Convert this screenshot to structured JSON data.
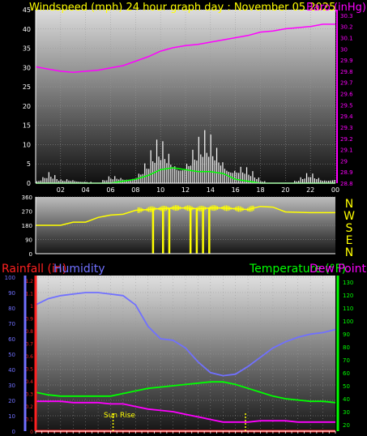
{
  "colors": {
    "wind_title": "#ffff00",
    "baro_title": "#ff00ff",
    "baro_line": "#ff00ff",
    "wind_gust": "#ffffff",
    "wind_avg": "#00ff00",
    "wind_dir": "#ffff00",
    "rain": "#ff2020",
    "humidity": "#7070ff",
    "temperature": "#00ff00",
    "dewpoint": "#ff00ff",
    "sunrise": "#ffff00"
  },
  "chart_data": [
    {
      "type": "line",
      "id": "wind_baro",
      "title": "Windspeed (mph)   24 hour graph day : November 05 2025",
      "baro_label": "Baro (inHg)",
      "xlim": [
        0,
        24
      ],
      "x_ticks": [
        "02",
        "04",
        "06",
        "08",
        "10",
        "12",
        "14",
        "16",
        "18",
        "20",
        "22",
        "00"
      ],
      "x_tick_hours": [
        2,
        4,
        6,
        8,
        10,
        12,
        14,
        16,
        18,
        20,
        22,
        24
      ],
      "ylim": [
        0,
        45
      ],
      "y_ticks": [
        0,
        5,
        10,
        15,
        20,
        25,
        30,
        35,
        40,
        45
      ],
      "y2lim": [
        28.8,
        30.35
      ],
      "y2_ticks": [
        "28.8",
        "28.9",
        "29",
        "29.1",
        "29.2",
        "29.3",
        "29.4",
        "29.5",
        "29.6",
        "29.7",
        "29.8",
        "29.9",
        "30",
        "30.1",
        "30.2",
        "30.3"
      ],
      "series": [
        {
          "key": "baro",
          "axis": "right",
          "x": [
            0,
            1,
            2,
            3,
            4,
            5,
            6,
            7,
            8,
            9,
            10,
            11,
            12,
            13,
            14,
            15,
            16,
            17,
            18,
            19,
            20,
            21,
            22,
            23,
            24
          ],
          "y": [
            29.84,
            29.82,
            29.8,
            29.79,
            29.8,
            29.81,
            29.83,
            29.85,
            29.89,
            29.93,
            29.98,
            30.01,
            30.03,
            30.04,
            30.06,
            30.08,
            30.1,
            30.12,
            30.15,
            30.16,
            30.18,
            30.19,
            30.2,
            30.22,
            30.22
          ]
        },
        {
          "key": "gust",
          "axis": "left",
          "x": [
            0,
            1,
            2,
            3,
            4,
            5,
            6,
            7,
            8,
            9,
            10,
            11,
            12,
            13,
            14,
            15,
            16,
            17,
            18,
            19,
            20,
            21,
            22,
            23,
            24
          ],
          "y": [
            1,
            3,
            1,
            2,
            1,
            0,
            2,
            3,
            4,
            7,
            12,
            14,
            12,
            12,
            13,
            14,
            9,
            4,
            1,
            0,
            0,
            1,
            3,
            2,
            3
          ]
        },
        {
          "key": "avg",
          "axis": "left",
          "x": [
            0,
            2,
            4,
            6,
            7,
            8,
            9,
            10,
            11,
            12,
            13,
            14,
            15,
            16,
            17,
            18,
            20,
            24
          ],
          "y": [
            0,
            0,
            0,
            0,
            0.5,
            1,
            2,
            3.5,
            4,
            3.5,
            3,
            3,
            2.5,
            1,
            0.5,
            0,
            0,
            0
          ]
        }
      ]
    },
    {
      "type": "line",
      "id": "wind_direction",
      "ylim": [
        0,
        360
      ],
      "y_ticks": [
        0,
        90,
        180,
        270,
        360
      ],
      "compass": [
        "N",
        "W",
        "S",
        "E",
        "N"
      ],
      "series": [
        {
          "key": "dir",
          "x": [
            0,
            2,
            3,
            4,
            5,
            6,
            7,
            8,
            9,
            9.5,
            10,
            11,
            12,
            13,
            14,
            15,
            16,
            17,
            18,
            19,
            20,
            22,
            24
          ],
          "y": [
            180,
            180,
            200,
            200,
            230,
            245,
            250,
            275,
            280,
            285,
            285,
            290,
            290,
            285,
            290,
            290,
            285,
            280,
            300,
            295,
            265,
            260,
            260
          ]
        }
      ]
    },
    {
      "type": "line",
      "id": "rain_humidity_temp",
      "labels": {
        "rainfall": "Rainfall (in)",
        "humidity": "Humidity",
        "temperature": "Temperature (°F)",
        "dewpoint": "Dew Point"
      },
      "annotation": "Sun Rise",
      "xlim": [
        0,
        24
      ],
      "humidity_ylim": [
        0,
        100
      ],
      "humidity_ticks": [
        0,
        10,
        20,
        30,
        40,
        50,
        60,
        70,
        80,
        90,
        100
      ],
      "rain_ylim": [
        0,
        1.2
      ],
      "rain_ticks": [
        "0",
        "0.1",
        "0.2",
        "0.3",
        "0.4",
        "0.5",
        "0.6",
        "0.7",
        "0.8",
        "0.9",
        "1",
        "1.1",
        "1.2"
      ],
      "temp_ylim": [
        10,
        135
      ],
      "temp_ticks": [
        10,
        20,
        30,
        40,
        50,
        60,
        70,
        80,
        90,
        100,
        110,
        120,
        130
      ],
      "sunrise_hour": 6.2,
      "sunset_hour": 16.8,
      "series": [
        {
          "key": "humidity",
          "axis": "humidity",
          "x": [
            0,
            1,
            2,
            3,
            4,
            5,
            6,
            7,
            8,
            9,
            10,
            11,
            12,
            13,
            14,
            15,
            16,
            17,
            18,
            19,
            20,
            21,
            22,
            23,
            24
          ],
          "y": [
            82,
            86,
            88,
            89,
            90,
            90,
            89,
            88,
            82,
            68,
            60,
            59,
            54,
            45,
            38,
            36,
            37,
            42,
            48,
            54,
            58,
            61,
            63,
            64,
            66
          ]
        },
        {
          "key": "temperature",
          "axis": "temp",
          "x": [
            0,
            1,
            2,
            3,
            4,
            5,
            6,
            7,
            8,
            9,
            10,
            11,
            12,
            13,
            14,
            15,
            16,
            17,
            18,
            19,
            20,
            21,
            22,
            23,
            24
          ],
          "y": [
            45,
            43,
            42,
            42,
            42,
            42,
            42,
            44,
            46,
            48,
            49,
            50,
            51,
            52,
            53,
            53,
            51,
            48,
            45,
            42,
            40,
            39,
            38,
            38,
            37
          ]
        },
        {
          "key": "dewpoint",
          "axis": "temp",
          "x": [
            0,
            1,
            2,
            3,
            4,
            5,
            6,
            7,
            8,
            9,
            10,
            11,
            12,
            13,
            14,
            15,
            16,
            17,
            18,
            19,
            20,
            21,
            22,
            23,
            24
          ],
          "y": [
            38,
            38,
            38,
            37,
            37,
            37,
            36,
            36,
            34,
            32,
            31,
            30,
            28,
            26,
            24,
            22,
            22,
            22,
            23,
            23,
            23,
            22,
            22,
            22,
            22
          ]
        },
        {
          "key": "rain",
          "axis": "rain",
          "x": [
            0,
            24
          ],
          "y": [
            0,
            0
          ]
        }
      ]
    }
  ]
}
